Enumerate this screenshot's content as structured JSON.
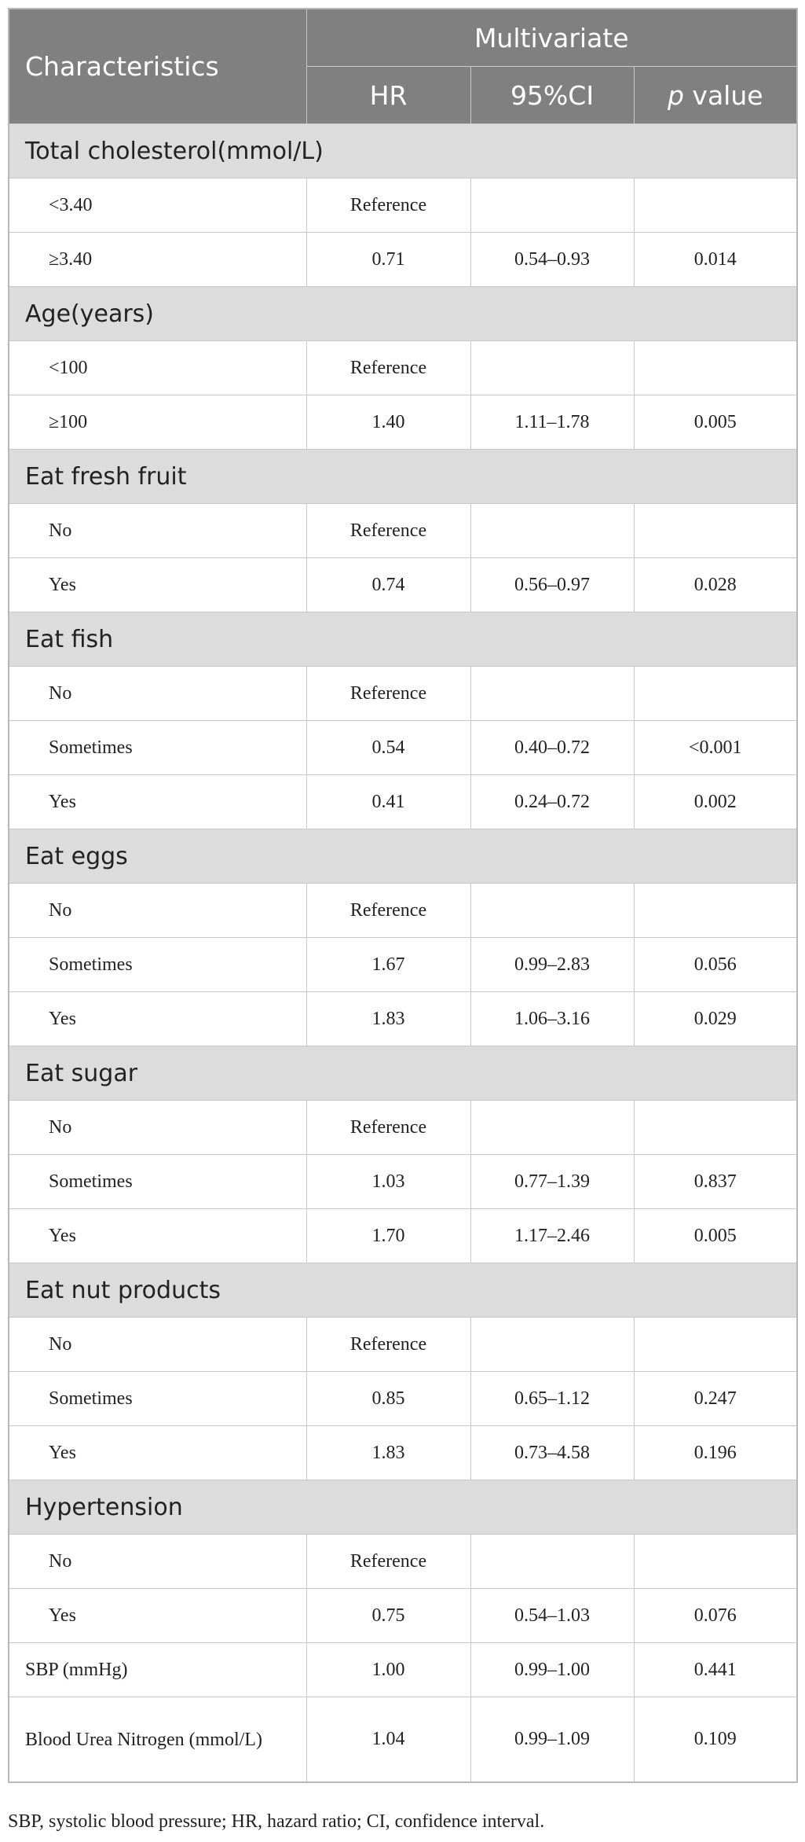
{
  "header": {
    "title": "Characteristics",
    "group": "Multivariate",
    "columns": [
      "HR",
      "95%CI"
    ],
    "pvalue_symbol": "p",
    "pvalue_label": "value"
  },
  "rows": [
    {
      "section": "Total cholesterol(mmol/L)"
    },
    {
      "cells": [
        "<3.40",
        "Reference"
      ]
    },
    {
      "cells": [
        "≥3.40",
        "0.71",
        "0.54–0.93",
        "0.014"
      ]
    },
    {
      "section": "Age(years)"
    },
    {
      "cells": [
        "<100",
        "Reference"
      ]
    },
    {
      "cells": [
        "≥100",
        "1.40",
        "1.11–1.78",
        "0.005"
      ]
    },
    {
      "section": "Eat fresh fruit"
    },
    {
      "cells": [
        "No",
        "Reference"
      ]
    },
    {
      "cells": [
        "Yes",
        "0.74",
        "0.56–0.97",
        "0.028"
      ]
    },
    {
      "section": "Eat fish"
    },
    {
      "cells": [
        "No",
        "Reference"
      ]
    },
    {
      "cells": [
        "Sometimes",
        "0.54",
        "0.40–0.72",
        "<0.001"
      ]
    },
    {
      "cells": [
        "Yes",
        "0.41",
        "0.24–0.72",
        "0.002"
      ]
    },
    {
      "section": "Eat eggs"
    },
    {
      "cells": [
        "No",
        "Reference"
      ]
    },
    {
      "cells": [
        "Sometimes",
        "1.67",
        "0.99–2.83",
        "0.056"
      ]
    },
    {
      "cells": [
        "Yes",
        "1.83",
        "1.06–3.16",
        "0.029"
      ]
    },
    {
      "section": "Eat sugar"
    },
    {
      "cells": [
        "No",
        "Reference"
      ]
    },
    {
      "cells": [
        "Sometimes",
        "1.03",
        "0.77–1.39",
        "0.837"
      ]
    },
    {
      "cells": [
        "Yes",
        "1.70",
        "1.17–2.46",
        "0.005"
      ]
    },
    {
      "section": "Eat nut products"
    },
    {
      "cells": [
        "No",
        "Reference"
      ]
    },
    {
      "cells": [
        "Sometimes",
        "0.85",
        "0.65–1.12",
        "0.247"
      ]
    },
    {
      "cells": [
        "Yes",
        "1.83",
        "0.73–4.58",
        "0.196"
      ]
    },
    {
      "section": "Hypertension"
    },
    {
      "cells": [
        "No",
        "Reference"
      ]
    },
    {
      "cells": [
        "Yes",
        "0.75",
        "0.54–1.03",
        "0.076"
      ]
    },
    {
      "cells": [
        "SBP (mmHg)",
        "1.00",
        "0.99–1.00",
        "0.441"
      ],
      "plain": true
    },
    {
      "cells": [
        "Blood Urea Nitrogen (mmol/L)",
        "1.04",
        "0.99–1.09",
        "0.109"
      ],
      "plain": true
    }
  ],
  "footnote": "SBP, systolic blood pressure; HR, hazard ratio; CI, confidence interval."
}
